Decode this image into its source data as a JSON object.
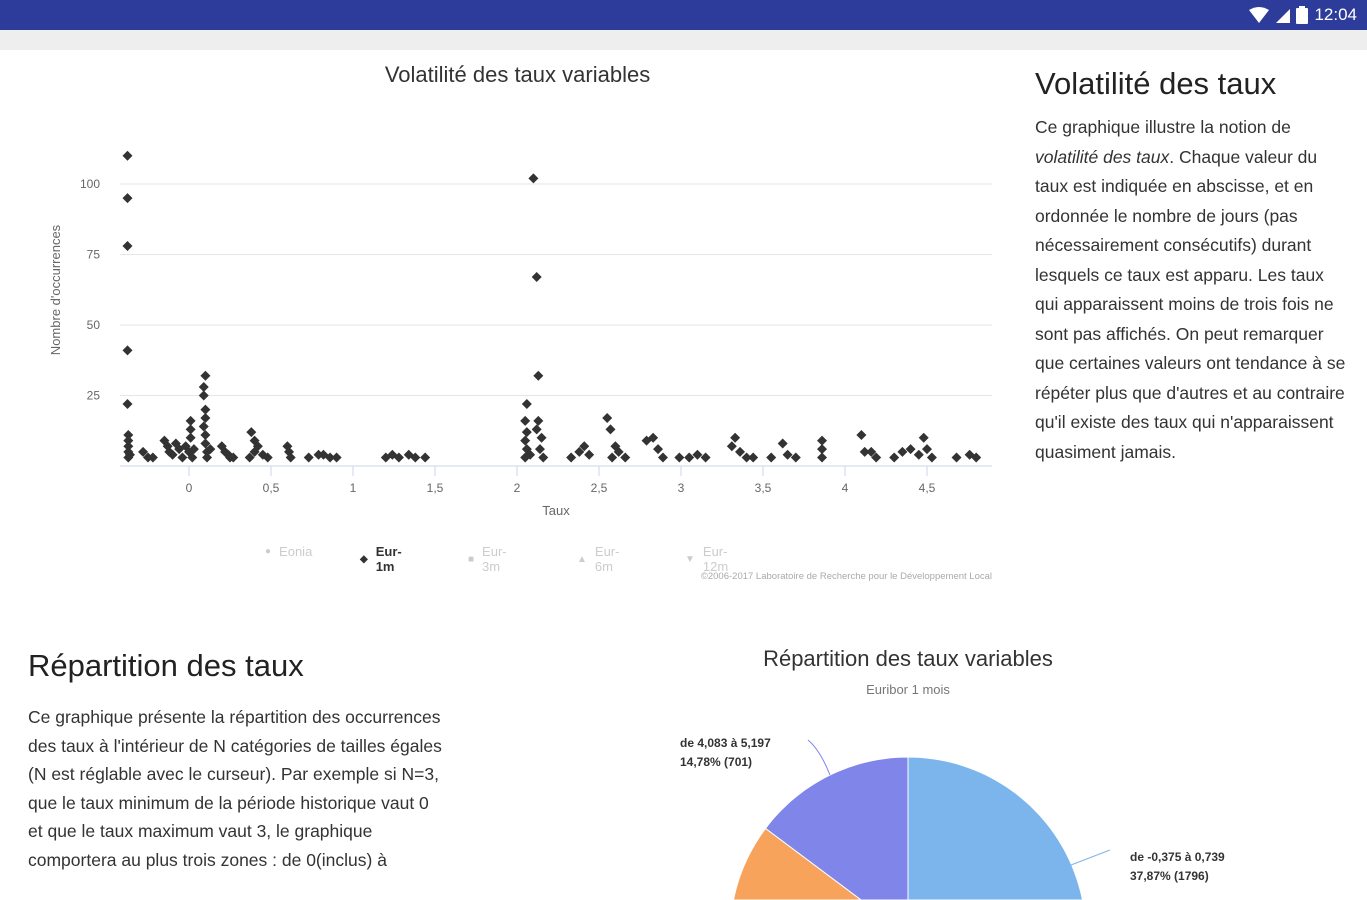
{
  "status_bar": {
    "time": "12:04",
    "icons": [
      "wifi-icon",
      "signal-icon",
      "battery-icon"
    ],
    "color": "#2d3b9b"
  },
  "volatility_section": {
    "heading": "Volatilité des taux",
    "paragraph_before_em": "Ce graphique illustre la notion de ",
    "paragraph_em": "volatilité des taux",
    "paragraph_after_em": ". Chaque valeur du taux est indiquée en abscisse, et en ordonnée le nombre de jours (pas nécessairement consécutifs) durant lesquels ce taux est apparu. Les taux qui apparaissent moins de trois fois ne sont pas affichés. On peut remarquer que certaines valeurs ont tendance à se répéter plus que d'autres et au contraire qu'il existe des taux qui n'apparaissent quasiment jamais."
  },
  "repartition_section": {
    "heading": "Répartition des taux",
    "paragraph": "Ce graphique présente la répartition des occurrences des taux à l'intérieur de N catégories de tailles égales (N est réglable avec le curseur). Par exemple si N=3, que le taux minimum de la période historique vaut 0 et que le taux maximum vaut 3, le graphique comportera au plus trois zones : de 0(inclus) à"
  },
  "chart_data": [
    {
      "type": "scatter",
      "title": "Volatilité des taux variables",
      "xlabel": "Taux",
      "ylabel": "Nombre d'occurrences",
      "xlim": [
        -0.42,
        4.88
      ],
      "ylim": [
        0,
        115
      ],
      "xticks": [
        "0",
        "0,5",
        "1",
        "1,5",
        "2",
        "2,5",
        "3",
        "3,5",
        "4",
        "4,5"
      ],
      "xtick_values": [
        0,
        0.5,
        1,
        1.5,
        2,
        2.5,
        3,
        3.5,
        4,
        4.5
      ],
      "yticks": [
        "25",
        "50",
        "75",
        "100"
      ],
      "ytick_values": [
        25,
        50,
        75,
        100
      ],
      "grid": true,
      "legend_position": "bottom",
      "legend": [
        {
          "name": "Eonia",
          "marker": "circle",
          "active": false
        },
        {
          "name": "Eur-1m",
          "marker": "diamond",
          "active": true
        },
        {
          "name": "Eur-3m",
          "marker": "square",
          "active": false
        },
        {
          "name": "Eur-6m",
          "marker": "triangle-up",
          "active": false
        },
        {
          "name": "Eur-12m",
          "marker": "triangle-down",
          "active": false
        }
      ],
      "credit": "©2006-2017 Laboratoire de Recherche pour le Développement Local",
      "series": [
        {
          "name": "Eur-1m",
          "color": "#333333",
          "points": [
            [
              -0.375,
              110
            ],
            [
              -0.375,
              95
            ],
            [
              -0.375,
              78
            ],
            [
              -0.375,
              41
            ],
            [
              -0.375,
              22
            ],
            [
              -0.37,
              11
            ],
            [
              -0.37,
              9
            ],
            [
              -0.37,
              7
            ],
            [
              -0.37,
              5
            ],
            [
              -0.37,
              3
            ],
            [
              -0.36,
              4
            ],
            [
              -0.28,
              5
            ],
            [
              -0.25,
              3
            ],
            [
              -0.22,
              3
            ],
            [
              -0.15,
              9
            ],
            [
              -0.13,
              7
            ],
            [
              -0.12,
              5
            ],
            [
              -0.1,
              4
            ],
            [
              -0.08,
              8
            ],
            [
              -0.06,
              6
            ],
            [
              -0.04,
              3
            ],
            [
              -0.02,
              7
            ],
            [
              0,
              5
            ],
            [
              0.01,
              16
            ],
            [
              0.01,
              13
            ],
            [
              0.01,
              10
            ],
            [
              0.02,
              3
            ],
            [
              0.03,
              6
            ],
            [
              0.1,
              32
            ],
            [
              0.09,
              28
            ],
            [
              0.09,
              25
            ],
            [
              0.1,
              20
            ],
            [
              0.1,
              17
            ],
            [
              0.09,
              14
            ],
            [
              0.1,
              11
            ],
            [
              0.1,
              8
            ],
            [
              0.11,
              5
            ],
            [
              0.11,
              3
            ],
            [
              0.13,
              6
            ],
            [
              0.2,
              7
            ],
            [
              0.22,
              5
            ],
            [
              0.24,
              4
            ],
            [
              0.25,
              3
            ],
            [
              0.27,
              3
            ],
            [
              0.38,
              12
            ],
            [
              0.4,
              9
            ],
            [
              0.42,
              7
            ],
            [
              0.4,
              5
            ],
            [
              0.37,
              3
            ],
            [
              0.45,
              4
            ],
            [
              0.48,
              3
            ],
            [
              0.6,
              7
            ],
            [
              0.61,
              5
            ],
            [
              0.62,
              3
            ],
            [
              0.73,
              3
            ],
            [
              0.79,
              4
            ],
            [
              0.82,
              4
            ],
            [
              0.86,
              3
            ],
            [
              0.9,
              3
            ],
            [
              1.2,
              3
            ],
            [
              1.24,
              4
            ],
            [
              1.28,
              3
            ],
            [
              1.34,
              4
            ],
            [
              1.38,
              3
            ],
            [
              1.44,
              3
            ],
            [
              2.06,
              22
            ],
            [
              2.05,
              16
            ],
            [
              2.06,
              12
            ],
            [
              2.05,
              9
            ],
            [
              2.06,
              6
            ],
            [
              2.05,
              3
            ],
            [
              2.08,
              4
            ],
            [
              2.1,
              102
            ],
            [
              2.12,
              67
            ],
            [
              2.13,
              32
            ],
            [
              2.13,
              16
            ],
            [
              2.12,
              13
            ],
            [
              2.15,
              10
            ],
            [
              2.14,
              6
            ],
            [
              2.16,
              3
            ],
            [
              2.33,
              3
            ],
            [
              2.38,
              5
            ],
            [
              2.41,
              7
            ],
            [
              2.44,
              4
            ],
            [
              2.55,
              17
            ],
            [
              2.57,
              13
            ],
            [
              2.6,
              7
            ],
            [
              2.62,
              5
            ],
            [
              2.58,
              3
            ],
            [
              2.66,
              3
            ],
            [
              2.79,
              9
            ],
            [
              2.83,
              10
            ],
            [
              2.86,
              6
            ],
            [
              2.89,
              3
            ],
            [
              2.99,
              3
            ],
            [
              3.05,
              3
            ],
            [
              3.1,
              4
            ],
            [
              3.15,
              3
            ],
            [
              3.33,
              10
            ],
            [
              3.31,
              7
            ],
            [
              3.36,
              5
            ],
            [
              3.4,
              3
            ],
            [
              3.44,
              3
            ],
            [
              3.55,
              3
            ],
            [
              3.62,
              8
            ],
            [
              3.65,
              4
            ],
            [
              3.7,
              3
            ],
            [
              3.86,
              9
            ],
            [
              3.86,
              6
            ],
            [
              3.86,
              3
            ],
            [
              4.1,
              11
            ],
            [
              4.12,
              5
            ],
            [
              4.16,
              5
            ],
            [
              4.19,
              3
            ],
            [
              4.3,
              3
            ],
            [
              4.35,
              5
            ],
            [
              4.4,
              6
            ],
            [
              4.45,
              4
            ],
            [
              4.48,
              10
            ],
            [
              4.5,
              6
            ],
            [
              4.53,
              3
            ],
            [
              4.68,
              3
            ],
            [
              4.76,
              4
            ],
            [
              4.8,
              3
            ]
          ]
        }
      ]
    },
    {
      "type": "pie",
      "title": "Répartition des taux variables",
      "subtitle": "Euribor 1 mois",
      "slices": [
        {
          "label": "de -0,375 à 0,739",
          "value_text": "37,87% (1796)",
          "percent": 37.87,
          "count": 1796,
          "color": "#7cb5ec"
        },
        {
          "label": "de 4,083 à 5,197",
          "value_text": "14,78% (701)",
          "percent": 14.78,
          "count": 701,
          "color": "#8085e9"
        }
      ],
      "other_visible_colors": [
        "#f7a35c"
      ]
    }
  ]
}
